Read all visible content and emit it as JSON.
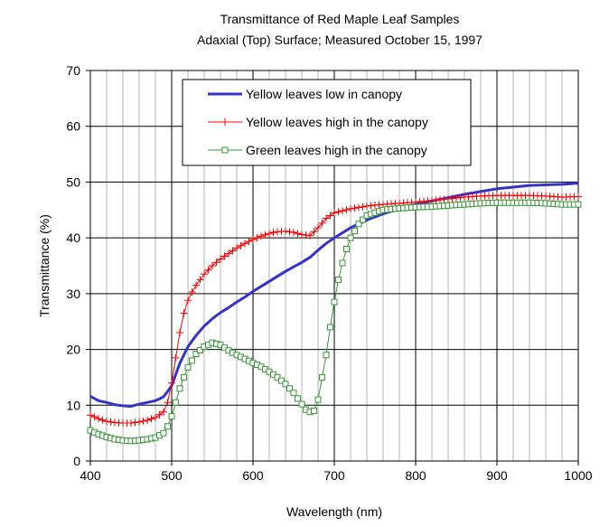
{
  "chart_data": {
    "type": "line",
    "title": "Transmittance of Red Maple Leaf Samples",
    "subtitle": "Adaxial (Top) Surface;  Measured October 15, 1997",
    "xlabel": "Wavelength (nm)",
    "ylabel": "Transmittance (%)",
    "xlim": [
      400,
      1000
    ],
    "ylim": [
      0,
      70
    ],
    "xticks": [
      400,
      500,
      600,
      700,
      800,
      900,
      1000
    ],
    "yticks": [
      0,
      10,
      20,
      30,
      40,
      50,
      60,
      70
    ],
    "grid": true,
    "legend_position": "top-center",
    "series": [
      {
        "name": "Yellow leaves low in canopy",
        "color": "#3333cc",
        "marker": "none",
        "x": [
          400,
          410,
          420,
          430,
          440,
          450,
          460,
          470,
          480,
          490,
          495,
          500,
          505,
          510,
          515,
          520,
          530,
          540,
          550,
          560,
          570,
          580,
          590,
          600,
          610,
          620,
          630,
          640,
          650,
          660,
          670,
          680,
          690,
          700,
          720,
          740,
          760,
          780,
          800,
          820,
          840,
          860,
          880,
          900,
          920,
          940,
          960,
          980,
          1000
        ],
        "y": [
          11.6,
          10.8,
          10.5,
          10.1,
          9.9,
          9.8,
          10.2,
          10.5,
          10.8,
          11.5,
          12.5,
          13.5,
          15.5,
          17.5,
          19.0,
          20.5,
          22.5,
          24.2,
          25.5,
          26.6,
          27.5,
          28.5,
          29.4,
          30.4,
          31.3,
          32.2,
          33.1,
          34.0,
          34.8,
          35.6,
          36.5,
          37.8,
          39.0,
          40.0,
          41.8,
          43.2,
          44.3,
          45.2,
          46.0,
          46.6,
          47.2,
          47.8,
          48.3,
          48.8,
          49.1,
          49.4,
          49.5,
          49.6,
          49.8
        ]
      },
      {
        "name": "Yellow leaves high in the canopy",
        "color": "#ff0000",
        "marker": "plus",
        "x": [
          400,
          410,
          420,
          430,
          440,
          450,
          460,
          470,
          480,
          490,
          495,
          500,
          505,
          510,
          515,
          520,
          525,
          530,
          540,
          550,
          560,
          570,
          580,
          590,
          600,
          610,
          620,
          630,
          640,
          650,
          660,
          670,
          680,
          690,
          700,
          720,
          740,
          760,
          780,
          800,
          820,
          840,
          860,
          880,
          900,
          920,
          940,
          960,
          980,
          1000
        ],
        "y": [
          8.2,
          7.6,
          7.1,
          6.9,
          6.8,
          6.8,
          7.0,
          7.3,
          7.8,
          8.8,
          10.5,
          14.0,
          18.5,
          23.0,
          26.5,
          28.8,
          30.3,
          31.5,
          33.5,
          35.0,
          36.2,
          37.2,
          38.2,
          39.0,
          39.7,
          40.3,
          40.8,
          41.1,
          41.2,
          41.0,
          40.6,
          40.4,
          41.8,
          43.5,
          44.5,
          45.2,
          45.7,
          46.0,
          46.2,
          46.4,
          46.7,
          47.0,
          47.3,
          47.5,
          47.6,
          47.6,
          47.6,
          47.5,
          47.3,
          47.4
        ]
      },
      {
        "name": "Green leaves high in the canopy",
        "color": "#339933",
        "marker": "square",
        "x": [
          400,
          410,
          420,
          430,
          440,
          450,
          460,
          470,
          480,
          490,
          495,
          500,
          505,
          510,
          515,
          520,
          525,
          530,
          540,
          550,
          560,
          570,
          580,
          590,
          600,
          610,
          620,
          630,
          640,
          650,
          660,
          665,
          670,
          675,
          680,
          685,
          690,
          695,
          700,
          705,
          710,
          715,
          720,
          730,
          740,
          760,
          780,
          800,
          820,
          840,
          860,
          880,
          900,
          920,
          940,
          960,
          980,
          1000
        ],
        "y": [
          5.5,
          4.8,
          4.3,
          3.9,
          3.7,
          3.6,
          3.7,
          3.9,
          4.2,
          5.0,
          6.2,
          8.0,
          10.5,
          13.0,
          15.0,
          16.8,
          18.0,
          19.2,
          20.5,
          21.2,
          20.8,
          19.8,
          19.0,
          18.3,
          17.6,
          16.9,
          16.0,
          15.0,
          13.8,
          12.2,
          10.2,
          9.2,
          8.8,
          9.0,
          11.0,
          15.0,
          19.0,
          24.0,
          28.5,
          32.5,
          35.5,
          38.0,
          40.0,
          42.5,
          44.0,
          45.0,
          45.3,
          45.5,
          45.6,
          45.8,
          46.0,
          46.2,
          46.3,
          46.3,
          46.3,
          46.2,
          46.0,
          46.0
        ]
      }
    ]
  }
}
